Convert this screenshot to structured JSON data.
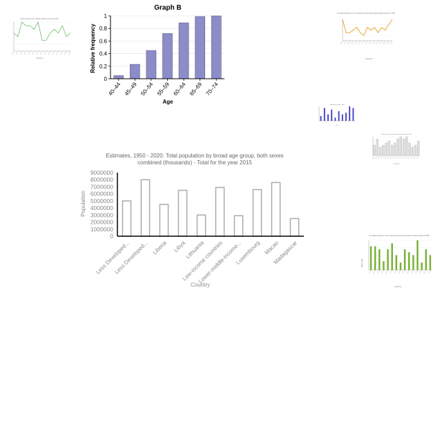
{
  "chart_data": [
    {
      "id": "graph-b",
      "type": "bar",
      "title": "Graph B",
      "xlabel": "Age",
      "ylabel": "Relative frequency",
      "categories": [
        "40–44",
        "45–49",
        "50–54",
        "55–59",
        "60–64",
        "65–69",
        "70–74"
      ],
      "values": [
        0.05,
        0.23,
        0.45,
        0.72,
        0.89,
        0.99,
        1.0
      ],
      "ylim": [
        0,
        1
      ],
      "yticks": [
        "0",
        "0.2",
        "0.4",
        "0.6",
        "0.8",
        "1"
      ],
      "color": "#8c8cc8"
    },
    {
      "id": "population",
      "type": "bar",
      "title_line1": "Estimates, 1950 - 2020: Total population by broad age group, both sexes",
      "title_line2": "combined (thousands) - Total for the year 2015",
      "xlabel": "Country",
      "ylabel": "Population",
      "categories": [
        "Less Developed...",
        "Less Developed...",
        "Liberia",
        "Libya",
        "Lithuania",
        "Low-income countries",
        "Lower-middle-income...",
        "Luxembourg",
        "Macao",
        "Madagascar"
      ],
      "values": [
        5000000,
        8000000,
        4500000,
        6500000,
        3000000,
        6900000,
        2900000,
        6600000,
        7600000,
        2500000
      ],
      "ylim": [
        0,
        9000000
      ],
      "yticks": [
        "0",
        "1000000",
        "2000000",
        "3000000",
        "4000000",
        "5000000",
        "6000000",
        "7000000",
        "8000000",
        "9000000"
      ],
      "color": "#aaaaaa"
    },
    {
      "id": "thumb-line-green",
      "type": "line",
      "title": "CO2 emissions per capita, world for the year 2015",
      "xlabel": "Country",
      "ylabel": "",
      "values": [
        5,
        4,
        8,
        7,
        7,
        6,
        8,
        3,
        3,
        5,
        6,
        5,
        7,
        4,
        5
      ],
      "color": "#7cc47c"
    },
    {
      "id": "thumb-line-orange",
      "type": "line",
      "title": "Air quality Measures on the national environmental health tracking network in 2008",
      "xlabel": "Country",
      "ylabel": "",
      "values": [
        8,
        3,
        3,
        4,
        5,
        3,
        2,
        5,
        4,
        5,
        3,
        5,
        4,
        6,
        8
      ],
      "color": "#e8a020"
    },
    {
      "id": "thumb-bar-navy",
      "type": "bar",
      "title": "Population by year, total",
      "xlabel": "Year",
      "ylabel": "",
      "values": [
        3,
        8,
        4,
        7,
        2,
        6,
        4,
        5,
        9,
        8
      ],
      "color": "#3a3ac0"
    },
    {
      "id": "thumb-bar-gray",
      "type": "bar",
      "title": "GDP per capita (constant), world for the year 2015",
      "xlabel": "Country",
      "ylabel": "",
      "values": [
        5,
        8,
        4,
        5,
        6,
        7,
        5,
        6,
        8,
        9,
        8,
        9,
        6,
        4,
        5,
        7
      ],
      "color": "#dddddd"
    },
    {
      "id": "thumb-bar-green",
      "type": "bar",
      "title": "Air quality Measures on the national environmental health tracking network in 2005",
      "xlabel": "Country",
      "ylabel": "Value (unit)",
      "values": [
        80,
        80,
        70,
        30,
        70,
        90,
        50,
        25,
        70,
        60,
        50,
        100,
        25,
        70,
        50
      ],
      "color": "#77b033"
    }
  ]
}
